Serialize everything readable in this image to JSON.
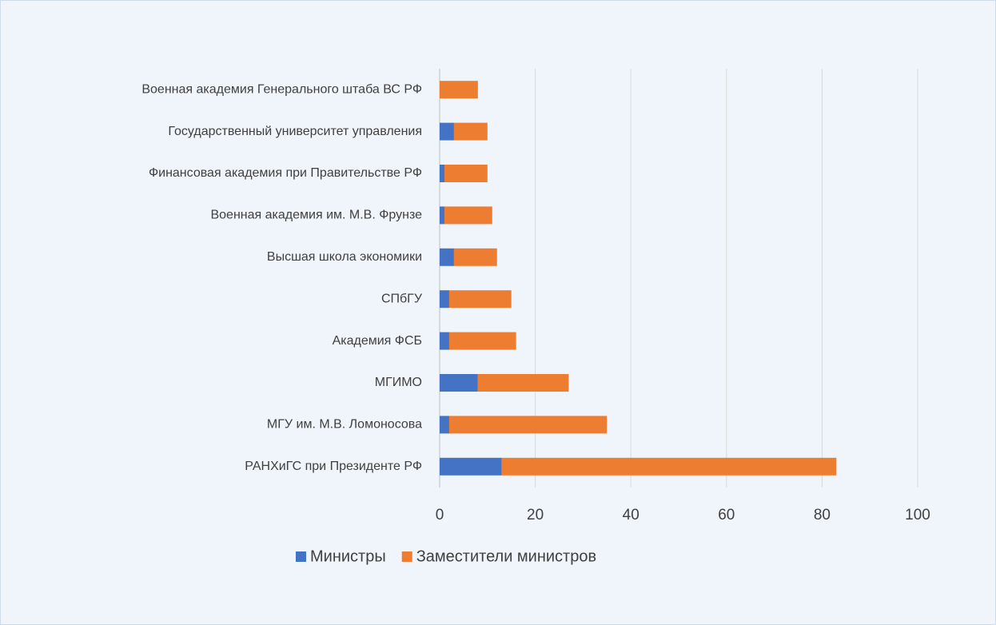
{
  "chart_data": {
    "type": "stacked_barh",
    "categories": [
      "Военная академия Генерального штаба ВС РФ",
      "Государственный университет управления",
      "Финансовая академия при Правительстве РФ",
      "Военная академия им. М.В. Фрунзе",
      "Высшая школа экономики",
      "СПбГУ",
      "Академия ФСБ",
      "МГИМО",
      "МГУ им. М.В. Ломоносова",
      "РАНХиГС при Президенте РФ"
    ],
    "series": [
      {
        "name": "Министры",
        "color": "#4472c4",
        "values": [
          0,
          3,
          1,
          1,
          3,
          2,
          2,
          8,
          2,
          13
        ]
      },
      {
        "name": "Заместители министров",
        "color": "#ed7d31",
        "values": [
          8,
          7,
          9,
          10,
          9,
          13,
          14,
          19,
          33,
          70
        ]
      }
    ],
    "xlim": [
      0,
      100
    ],
    "xticks": [
      0,
      20,
      40,
      60,
      80,
      100
    ],
    "grid": true,
    "legend": "bottom"
  }
}
